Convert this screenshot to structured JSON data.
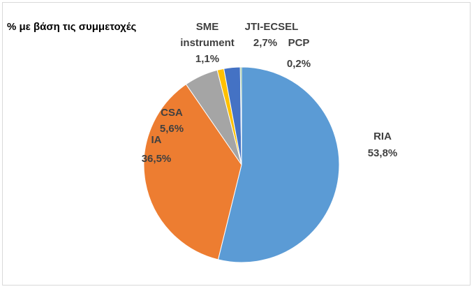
{
  "chart_data": {
    "type": "pie",
    "title": "% με βάση τις συμμετοχές",
    "categories": [
      "RIA",
      "IA",
      "CSA",
      "SME instrument",
      "JTI-ECSEL",
      "PCP"
    ],
    "values": [
      53.8,
      36.5,
      5.6,
      1.1,
      2.7,
      0.2
    ],
    "value_labels": [
      "53,8%",
      "36,5%",
      "5,6%",
      "1,1%",
      "2,7%",
      "0,2%"
    ],
    "colors": [
      "#5b9bd5",
      "#ed7d31",
      "#a5a5a5",
      "#ffc000",
      "#4472c4",
      "#70ad47"
    ]
  }
}
